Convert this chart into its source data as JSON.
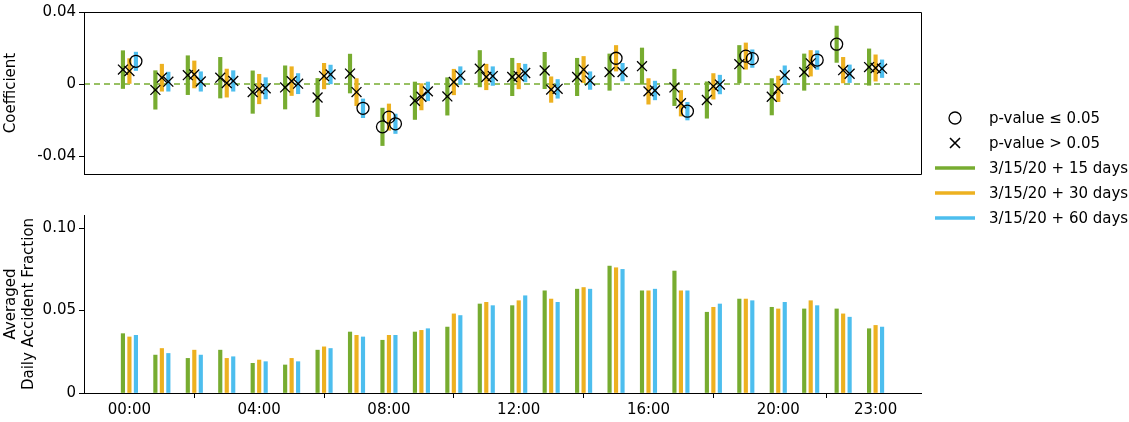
{
  "chart_data": [
    {
      "type": "scatter",
      "ylabel": "Coefficient",
      "xlim": [
        -1.4,
        24.4
      ],
      "ylim": [
        -0.05,
        0.04
      ],
      "yticks": [
        0.04,
        0,
        -0.04
      ],
      "tick_labels": "y",
      "legend": "right",
      "ref_lines": [
        {
          "axis": "y",
          "value": 0,
          "color": "#77ac30",
          "line_style": "dashed"
        }
      ],
      "series": [
        {
          "name": "p-value ≤ 0.05",
          "color": "#000000",
          "marker": "circle",
          "x": [
            0.2,
            7.2,
            7.8,
            8,
            8.2,
            15,
            17.2,
            19,
            19.2,
            21.2,
            21.8
          ],
          "values": [
            0.0126,
            -0.0135,
            -0.0238,
            -0.0184,
            -0.0221,
            0.0143,
            -0.0151,
            0.0155,
            0.0141,
            0.0133,
            0.0221
          ]
        },
        {
          "name": "p-value > 0.05",
          "color": "#000000",
          "marker": "cross",
          "x": [
            -0.2,
            0,
            0.8,
            1,
            1.2,
            1.8,
            2,
            2.2,
            2.8,
            3,
            3.2,
            3.8,
            4,
            4.2,
            4.8,
            5,
            5.2,
            5.8,
            6,
            6.2,
            6.8,
            7,
            8.8,
            9,
            9.2,
            9.8,
            10,
            10.2,
            10.8,
            11,
            11.2,
            11.8,
            12,
            12.2,
            12.8,
            13,
            13.2,
            13.8,
            14,
            14.2,
            14.8,
            15.2,
            15.8,
            16,
            16.2,
            16.8,
            17,
            17.8,
            18,
            18.2,
            18.8,
            19.8,
            20,
            20.2,
            20.8,
            21,
            22,
            22.2,
            22.8,
            23,
            23.2
          ],
          "values": [
            0.008,
            0.0072,
            -0.0033,
            0.0035,
            0.0013,
            0.0049,
            0.0053,
            0.0014,
            0.0035,
            0.0005,
            0.0017,
            -0.0045,
            -0.0028,
            -0.0024,
            -0.0019,
            0.0016,
            0.0002,
            -0.0075,
            0.0044,
            0.0053,
            0.0058,
            -0.0045,
            -0.0093,
            -0.0071,
            -0.0041,
            -0.0069,
            0.0011,
            0.0047,
            0.0085,
            0.0039,
            0.0044,
            0.0039,
            0.0044,
            0.0061,
            0.0075,
            -0.0031,
            -0.0027,
            0.0039,
            0.008,
            0.0019,
            0.0066,
            0.0066,
            0.0099,
            -0.0041,
            -0.0036,
            -0.0019,
            -0.0107,
            -0.0089,
            -0.0013,
            -0.0003,
            0.011,
            -0.0071,
            -0.0027,
            0.0049,
            0.0066,
            0.0115,
            0.0077,
            0.0057,
            0.0094,
            0.0089,
            0.0085
          ]
        },
        {
          "name": "3/15/20 + 15 days",
          "type": "bar",
          "color": "#77ac30",
          "x": [
            -0.2,
            0.8,
            1.8,
            2.8,
            3.8,
            4.8,
            5.8,
            6.8,
            7.8,
            8.8,
            9.8,
            10.8,
            11.8,
            12.8,
            13.8,
            14.8,
            15.8,
            16.8,
            17.8,
            18.8,
            19.8,
            20.8,
            21.8,
            22.8
          ],
          "base": [
            -0.0025,
            -0.014,
            -0.0059,
            -0.0078,
            -0.0163,
            -0.0139,
            -0.0181,
            -0.005,
            -0.0342,
            -0.0197,
            -0.0173,
            -0.0016,
            -0.0065,
            -0.0026,
            -0.0065,
            -0.0035,
            -0.0002,
            -0.012,
            -0.019,
            0.0006,
            -0.0172,
            -0.0035,
            0.012,
            -0.0007
          ],
          "values": [
            0.021,
            0.0214,
            0.0216,
            0.0226,
            0.0236,
            0.024,
            0.0212,
            0.0216,
            0.0208,
            0.0208,
            0.0208,
            0.0202,
            0.0208,
            0.0202,
            0.0208,
            0.0202,
            0.0202,
            0.0202,
            0.0202,
            0.0208,
            0.0202,
            0.0202,
            0.0202,
            0.0202
          ]
        },
        {
          "name": "3/15/20 + 30 days",
          "type": "bar",
          "color": "#edb120",
          "x": [
            0,
            1,
            2,
            3,
            4,
            5,
            6,
            7,
            8,
            9,
            10,
            11,
            12,
            13,
            14,
            15,
            16,
            17,
            18,
            19,
            20,
            21,
            22,
            23
          ],
          "base": [
            0.0003,
            -0.004,
            -0.0022,
            -0.0073,
            -0.011,
            -0.0064,
            -0.0027,
            -0.012,
            -0.0257,
            -0.0144,
            -0.006,
            -0.0032,
            -0.0027,
            -0.0102,
            0.0007,
            0.0072,
            -0.0112,
            -0.0178,
            -0.0084,
            0.0082,
            -0.0098,
            0.0044,
            0.0006,
            0.0016
          ],
          "values": [
            0.0138,
            0.015,
            0.015,
            0.0156,
            0.0164,
            0.016,
            0.0142,
            0.015,
            0.0146,
            0.0146,
            0.0142,
            0.0142,
            0.0142,
            0.0142,
            0.0146,
            0.0142,
            0.0142,
            0.0142,
            0.0142,
            0.0146,
            0.0142,
            0.0142,
            0.0142,
            0.0146
          ]
        },
        {
          "name": "3/15/20 + 60 days",
          "type": "bar",
          "color": "#4dbeee",
          "x": [
            0.2,
            1.2,
            2.2,
            3.2,
            4.2,
            5.2,
            6.2,
            7.2,
            8.2,
            9.2,
            10.2,
            11.2,
            12.2,
            13.2,
            14.2,
            15.2,
            16.2,
            17.2,
            18.2,
            19.2,
            20.2,
            21.2,
            22.2,
            23.2
          ],
          "base": [
            0.0075,
            -0.004,
            -0.004,
            -0.004,
            -0.0083,
            -0.0054,
            0.0001,
            -0.0187,
            -0.0275,
            -0.0093,
            -0.0002,
            -0.0008,
            0.0012,
            -0.0079,
            -0.003,
            0.0017,
            -0.0088,
            -0.02,
            -0.0055,
            0.0092,
            -0.0003,
            0.0081,
            0.0008,
            0.0036
          ],
          "values": [
            0.0102,
            0.0106,
            0.0108,
            0.0114,
            0.0118,
            0.0112,
            0.0104,
            0.0104,
            0.0108,
            0.0104,
            0.0098,
            0.0104,
            0.0098,
            0.0104,
            0.0098,
            0.0098,
            0.0104,
            0.0098,
            0.0104,
            0.0098,
            0.0104,
            0.0104,
            0.0098,
            0.0098
          ]
        }
      ]
    },
    {
      "type": "bar",
      "ylabel": "Averaged\nDaily Accident Fraction",
      "xlim": [
        -1.4,
        24.4
      ],
      "xticks": [
        {
          "value": 0,
          "label": "00:00"
        },
        {
          "value": 4,
          "label": "04:00"
        },
        {
          "value": 8,
          "label": "08:00"
        },
        {
          "value": 12,
          "label": "12:00"
        },
        {
          "value": 16,
          "label": "16:00"
        },
        {
          "value": 20,
          "label": "20:00"
        },
        {
          "value": 23,
          "label": "23:00"
        }
      ],
      "ylim": [
        0,
        0.108
      ],
      "yticks": [
        0,
        0.05,
        {
          "value": 0.1,
          "label": "0.10"
        }
      ],
      "series": [
        {
          "color": "#77ac30",
          "x": [
            -0.2,
            0.8,
            1.8,
            2.8,
            3.8,
            4.8,
            5.8,
            6.8,
            7.8,
            8.8,
            9.8,
            10.8,
            11.8,
            12.8,
            13.8,
            14.8,
            15.8,
            16.8,
            17.8,
            18.8,
            19.8,
            20.8,
            21.8,
            22.8
          ],
          "values": [
            0.036,
            0.023,
            0.021,
            0.026,
            0.018,
            0.017,
            0.026,
            0.037,
            0.032,
            0.037,
            0.04,
            0.054,
            0.053,
            0.062,
            0.063,
            0.077,
            0.062,
            0.074,
            0.049,
            0.057,
            0.052,
            0.051,
            0.051,
            0.039
          ]
        },
        {
          "color": "#edb120",
          "x": [
            0,
            1,
            2,
            3,
            4,
            5,
            6,
            7,
            8,
            9,
            10,
            11,
            12,
            13,
            14,
            15,
            16,
            17,
            18,
            19,
            20,
            21,
            22,
            23
          ],
          "values": [
            0.034,
            0.027,
            0.026,
            0.021,
            0.02,
            0.021,
            0.028,
            0.035,
            0.035,
            0.038,
            0.048,
            0.055,
            0.056,
            0.057,
            0.064,
            0.076,
            0.062,
            0.062,
            0.052,
            0.057,
            0.051,
            0.056,
            0.048,
            0.041
          ]
        },
        {
          "color": "#4dbeee",
          "x": [
            0.2,
            1.2,
            2.2,
            3.2,
            4.2,
            5.2,
            6.2,
            7.2,
            8.2,
            9.2,
            10.2,
            11.2,
            12.2,
            13.2,
            14.2,
            15.2,
            16.2,
            17.2,
            18.2,
            19.2,
            20.2,
            21.2,
            22.2,
            23.2
          ],
          "values": [
            0.035,
            0.024,
            0.023,
            0.022,
            0.019,
            0.019,
            0.027,
            0.034,
            0.035,
            0.039,
            0.047,
            0.053,
            0.059,
            0.055,
            0.063,
            0.075,
            0.063,
            0.062,
            0.054,
            0.056,
            0.055,
            0.053,
            0.046,
            0.04
          ]
        }
      ]
    }
  ]
}
